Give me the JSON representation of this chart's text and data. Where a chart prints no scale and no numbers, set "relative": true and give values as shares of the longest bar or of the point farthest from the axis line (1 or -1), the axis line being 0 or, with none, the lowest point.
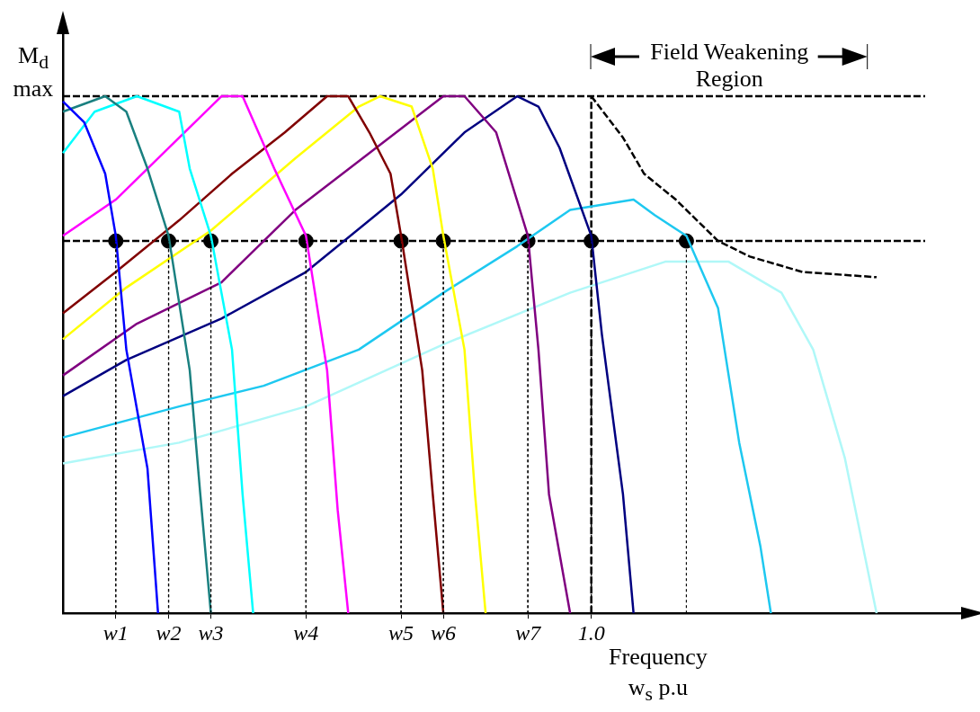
{
  "chart_data": {
    "type": "line",
    "relative": true,
    "xlabel": "Frequency w$_{s}$ p.u",
    "ylabel": "M$_{d}$ max",
    "annotations": [
      "Field Weakening Region"
    ],
    "categories": [
      null,
      null,
      null,
      null,
      null,
      "w1",
      null,
      null,
      null,
      null,
      "w2",
      null,
      null,
      null,
      "w3",
      null,
      null,
      null,
      null,
      null,
      null,
      null,
      null,
      "w4",
      null,
      null,
      null,
      null,
      null,
      null,
      null,
      null,
      "w5",
      null,
      null,
      null,
      "w6",
      null,
      null,
      null,
      null,
      null,
      null,
      null,
      "w7",
      null,
      null,
      null,
      null,
      null,
      "1.0",
      null,
      null,
      null,
      null,
      null,
      null,
      null,
      null,
      null,
      null,
      null,
      null,
      null,
      null,
      null,
      null,
      null,
      null,
      null,
      null,
      null,
      null,
      null,
      null,
      null,
      null,
      null,
      null,
      null,
      null,
      null,
      null,
      null,
      null,
      null
    ],
    "marker": "none",
    "grid": "x",
    "series": [
      {
        "color": "#0000ff",
        "values": [
          0.99,
          null,
          0.95,
          null,
          0.85,
          0.73,
          0.51,
          null,
          0.28,
          0,
          null,
          null,
          null,
          null,
          null,
          null,
          null,
          null,
          null,
          null,
          null,
          null,
          null,
          null,
          null,
          null,
          null,
          null,
          null,
          null,
          null,
          null,
          null,
          null,
          null,
          null,
          null,
          null,
          null,
          null,
          null,
          null,
          null,
          null,
          null,
          null,
          null,
          null,
          null,
          null,
          null,
          null,
          null,
          null,
          null,
          null,
          null,
          null,
          null,
          null,
          null,
          null,
          null,
          null,
          null,
          null,
          null,
          null,
          null,
          null,
          null,
          null,
          null,
          null,
          null,
          null,
          null,
          null,
          null,
          null,
          null,
          null,
          null,
          null,
          null,
          null
        ]
      },
      {
        "color": "#1a8080",
        "values": [
          0.97,
          null,
          null,
          null,
          1.0,
          null,
          0.97,
          null,
          0.86,
          null,
          0.73,
          null,
          0.47,
          0.23,
          0,
          null,
          null,
          null,
          null,
          null,
          null,
          null,
          null,
          null,
          null,
          null,
          null,
          null,
          null,
          null,
          null,
          null,
          null,
          null,
          null,
          null,
          null,
          null,
          null,
          null,
          null,
          null,
          null,
          null,
          null,
          null,
          null,
          null,
          null,
          null,
          null,
          null,
          null,
          null,
          null,
          null,
          null,
          null,
          null,
          null,
          null,
          null,
          null,
          null,
          null,
          null,
          null,
          null,
          null,
          null,
          null,
          null,
          null,
          null,
          null,
          null,
          null,
          null,
          null,
          null,
          null,
          null,
          null,
          null,
          null,
          null
        ]
      },
      {
        "color": "#00ffff",
        "values": [
          0.89,
          null,
          null,
          0.97,
          null,
          null,
          null,
          1.0,
          null,
          null,
          null,
          0.97,
          0.86,
          null,
          0.73,
          null,
          0.51,
          0.23,
          0,
          null,
          null,
          null,
          null,
          null,
          null,
          null,
          null,
          null,
          null,
          null,
          null,
          null,
          null,
          null,
          null,
          null,
          null,
          null,
          null,
          null,
          null,
          null,
          null,
          null,
          null,
          null,
          null,
          null,
          null,
          null,
          null,
          null,
          null,
          null,
          null,
          null,
          null,
          null,
          null,
          null,
          null,
          null,
          null,
          null,
          null,
          null,
          null,
          null,
          null,
          null,
          null,
          null,
          null,
          null,
          null,
          null,
          null,
          null,
          null,
          null,
          null,
          null,
          null,
          null,
          null,
          null
        ]
      },
      {
        "color": "#ff00ff",
        "values": [
          0.73,
          null,
          null,
          null,
          null,
          0.8,
          null,
          null,
          null,
          null,
          null,
          0.92,
          null,
          null,
          null,
          1.0,
          null,
          1.0,
          null,
          null,
          0.86,
          null,
          null,
          0.73,
          null,
          0.47,
          0.2,
          0,
          null,
          null,
          null,
          null,
          null,
          null,
          null,
          null,
          null,
          null,
          null,
          null,
          null,
          null,
          null,
          null,
          null,
          null,
          null,
          null,
          null,
          null,
          null,
          null,
          null,
          null,
          null,
          null,
          null,
          null,
          null,
          null,
          null,
          null,
          null,
          null,
          null,
          null,
          null,
          null,
          null,
          null,
          null,
          null,
          null,
          null,
          null,
          null,
          null,
          null,
          null,
          null,
          null,
          null,
          null,
          null,
          null,
          null
        ]
      },
      {
        "color": "#800000",
        "values": [
          0.58,
          null,
          null,
          null,
          null,
          0.66,
          null,
          null,
          null,
          null,
          null,
          0.76,
          null,
          null,
          null,
          null,
          0.85,
          null,
          null,
          null,
          null,
          0.93,
          null,
          null,
          null,
          1.0,
          null,
          1.0,
          null,
          0.93,
          null,
          0.85,
          0.73,
          null,
          0.47,
          0.23,
          0,
          null,
          null,
          null,
          null,
          null,
          null,
          null,
          null,
          null,
          null,
          null,
          null,
          null,
          null,
          null,
          null,
          null,
          null,
          null,
          null,
          null,
          null,
          null,
          null,
          null,
          null,
          null,
          null,
          null,
          null,
          null,
          null,
          null,
          null,
          null,
          null,
          null,
          null,
          null,
          null,
          null,
          null,
          null,
          null,
          null,
          null,
          null,
          null,
          null
        ]
      },
      {
        "color": "#ffff00",
        "values": [
          0.53,
          null,
          null,
          null,
          null,
          null,
          0.63,
          null,
          null,
          null,
          null,
          null,
          null,
          null,
          0.74,
          null,
          null,
          null,
          null,
          null,
          null,
          null,
          0.88,
          null,
          null,
          null,
          null,
          null,
          0.98,
          null,
          1.0,
          null,
          null,
          0.98,
          null,
          0.86,
          0.73,
          null,
          0.51,
          0.23,
          0,
          null,
          null,
          null,
          null,
          null,
          null,
          null,
          null,
          null,
          null,
          null,
          null,
          null,
          null,
          null,
          null,
          null,
          null,
          null,
          null,
          null,
          null,
          null,
          null,
          null,
          null,
          null,
          null,
          null,
          null,
          null,
          null,
          null,
          null,
          null,
          null,
          null,
          null,
          null,
          null,
          null,
          null,
          null,
          null,
          null
        ]
      },
      {
        "color": "#800080",
        "values": [
          0.46,
          null,
          null,
          null,
          null,
          null,
          null,
          0.56,
          null,
          null,
          null,
          null,
          null,
          null,
          null,
          0.64,
          null,
          null,
          null,
          null,
          null,
          null,
          0.78,
          null,
          null,
          null,
          null,
          null,
          null,
          0.89,
          null,
          null,
          null,
          null,
          null,
          null,
          1.0,
          null,
          1.0,
          null,
          null,
          0.93,
          null,
          null,
          0.73,
          0.51,
          0.23,
          null,
          0,
          null,
          null,
          null,
          null,
          null,
          null,
          null,
          null,
          null,
          null,
          null,
          null,
          null,
          null,
          null,
          null,
          null,
          null,
          null,
          null,
          null,
          null,
          null,
          null,
          null,
          null,
          null,
          null,
          null,
          null,
          null,
          null,
          null,
          null,
          null,
          null,
          null
        ]
      },
      {
        "color": "#000080",
        "values": [
          0.42,
          null,
          null,
          null,
          null,
          null,
          0.49,
          null,
          null,
          null,
          null,
          null,
          null,
          null,
          null,
          0.57,
          null,
          null,
          null,
          null,
          null,
          null,
          null,
          0.66,
          null,
          null,
          null,
          null,
          null,
          null,
          null,
          null,
          0.81,
          null,
          null,
          null,
          null,
          null,
          0.93,
          null,
          null,
          null,
          null,
          1.0,
          null,
          0.98,
          null,
          0.9,
          null,
          null,
          0.73,
          0.54,
          null,
          0.23,
          0,
          null,
          null,
          null,
          null,
          null,
          null,
          null,
          null,
          null,
          null,
          null,
          null,
          null,
          null,
          null,
          null,
          null,
          null,
          null,
          null,
          null,
          null,
          null,
          null,
          null,
          null,
          null,
          null,
          null,
          null,
          null
        ]
      },
      {
        "color": "#1ec8f0",
        "values": [
          0.34,
          null,
          null,
          null,
          null,
          null,
          null,
          null,
          null,
          null,
          null,
          0.4,
          null,
          null,
          null,
          null,
          null,
          null,
          null,
          0.44,
          null,
          null,
          null,
          null,
          null,
          null,
          null,
          null,
          0.51,
          null,
          null,
          null,
          null,
          null,
          null,
          null,
          0.62,
          null,
          null,
          null,
          null,
          null,
          null,
          0.71,
          null,
          null,
          null,
          null,
          0.78,
          null,
          null,
          null,
          null,
          null,
          0.8,
          null,
          0.77,
          null,
          null,
          0.73,
          null,
          null,
          0.59,
          null,
          0.33,
          null,
          0.13,
          0,
          null,
          null,
          null,
          null,
          null,
          null,
          null,
          null,
          null,
          null,
          null,
          null,
          null,
          null,
          null,
          null,
          null,
          null
        ]
      },
      {
        "color": "#b0f8f8",
        "values": [
          0.29,
          null,
          null,
          null,
          null,
          null,
          null,
          null,
          null,
          null,
          null,
          0.33,
          null,
          null,
          null,
          null,
          null,
          null,
          null,
          null,
          null,
          null,
          null,
          0.4,
          null,
          null,
          null,
          null,
          null,
          null,
          null,
          null,
          null,
          null,
          null,
          null,
          0.52,
          null,
          null,
          null,
          null,
          null,
          null,
          null,
          null,
          null,
          null,
          null,
          0.62,
          null,
          null,
          null,
          null,
          null,
          null,
          null,
          null,
          0.68,
          null,
          null,
          null,
          null,
          null,
          0.68,
          null,
          null,
          null,
          null,
          0.62,
          null,
          null,
          0.51,
          null,
          null,
          0.3,
          null,
          null,
          0,
          null,
          null,
          null,
          null,
          null,
          null,
          null,
          null
        ]
      },
      {
        "color": "#000000",
        "line_style": "dashed",
        "values": [
          null,
          null,
          null,
          null,
          null,
          null,
          null,
          null,
          null,
          null,
          null,
          null,
          null,
          null,
          null,
          null,
          null,
          null,
          null,
          null,
          null,
          null,
          null,
          null,
          null,
          null,
          null,
          null,
          null,
          null,
          null,
          null,
          null,
          null,
          null,
          null,
          null,
          null,
          null,
          null,
          null,
          null,
          null,
          null,
          null,
          null,
          null,
          null,
          null,
          null,
          1.0,
          null,
          null,
          0.92,
          null,
          0.85,
          null,
          null,
          0.8,
          null,
          0.76,
          null,
          0.72,
          null,
          null,
          0.69,
          null,
          null,
          null,
          null,
          0.66,
          null,
          null,
          null,
          null,
          null,
          null,
          0.65,
          null,
          null,
          null,
          null,
          null,
          null,
          null,
          null
        ]
      },
      {
        "type": "lollipop",
        "marker": "circle",
        "line_style": "dotted",
        "color": "#000000",
        "values": [
          null,
          null,
          null,
          null,
          null,
          0.72,
          null,
          null,
          null,
          null,
          0.72,
          null,
          null,
          null,
          0.72,
          null,
          null,
          null,
          null,
          null,
          null,
          null,
          null,
          0.72,
          null,
          null,
          null,
          null,
          null,
          null,
          null,
          null,
          0.72,
          null,
          null,
          null,
          0.72,
          null,
          null,
          null,
          null,
          null,
          null,
          null,
          0.72,
          null,
          null,
          null,
          null,
          null,
          0.72,
          null,
          null,
          null,
          null,
          null,
          null,
          null,
          null,
          0.72,
          null,
          null,
          null,
          null,
          null,
          null,
          null,
          null,
          null,
          null,
          null,
          null,
          null,
          null,
          null,
          null,
          null,
          null,
          null,
          null,
          null,
          null,
          null,
          null,
          null,
          null
        ]
      }
    ],
    "ref_lines": [
      {
        "axis": "y",
        "value": 1,
        "line_style": "dashed",
        "color": "#000000"
      },
      {
        "axis": "y",
        "value": 0.72,
        "line_style": "dashed",
        "color": "#000000"
      },
      {
        "axis": "x",
        "value": "1.0",
        "line_style": "dashed",
        "color": "#000000"
      }
    ]
  }
}
